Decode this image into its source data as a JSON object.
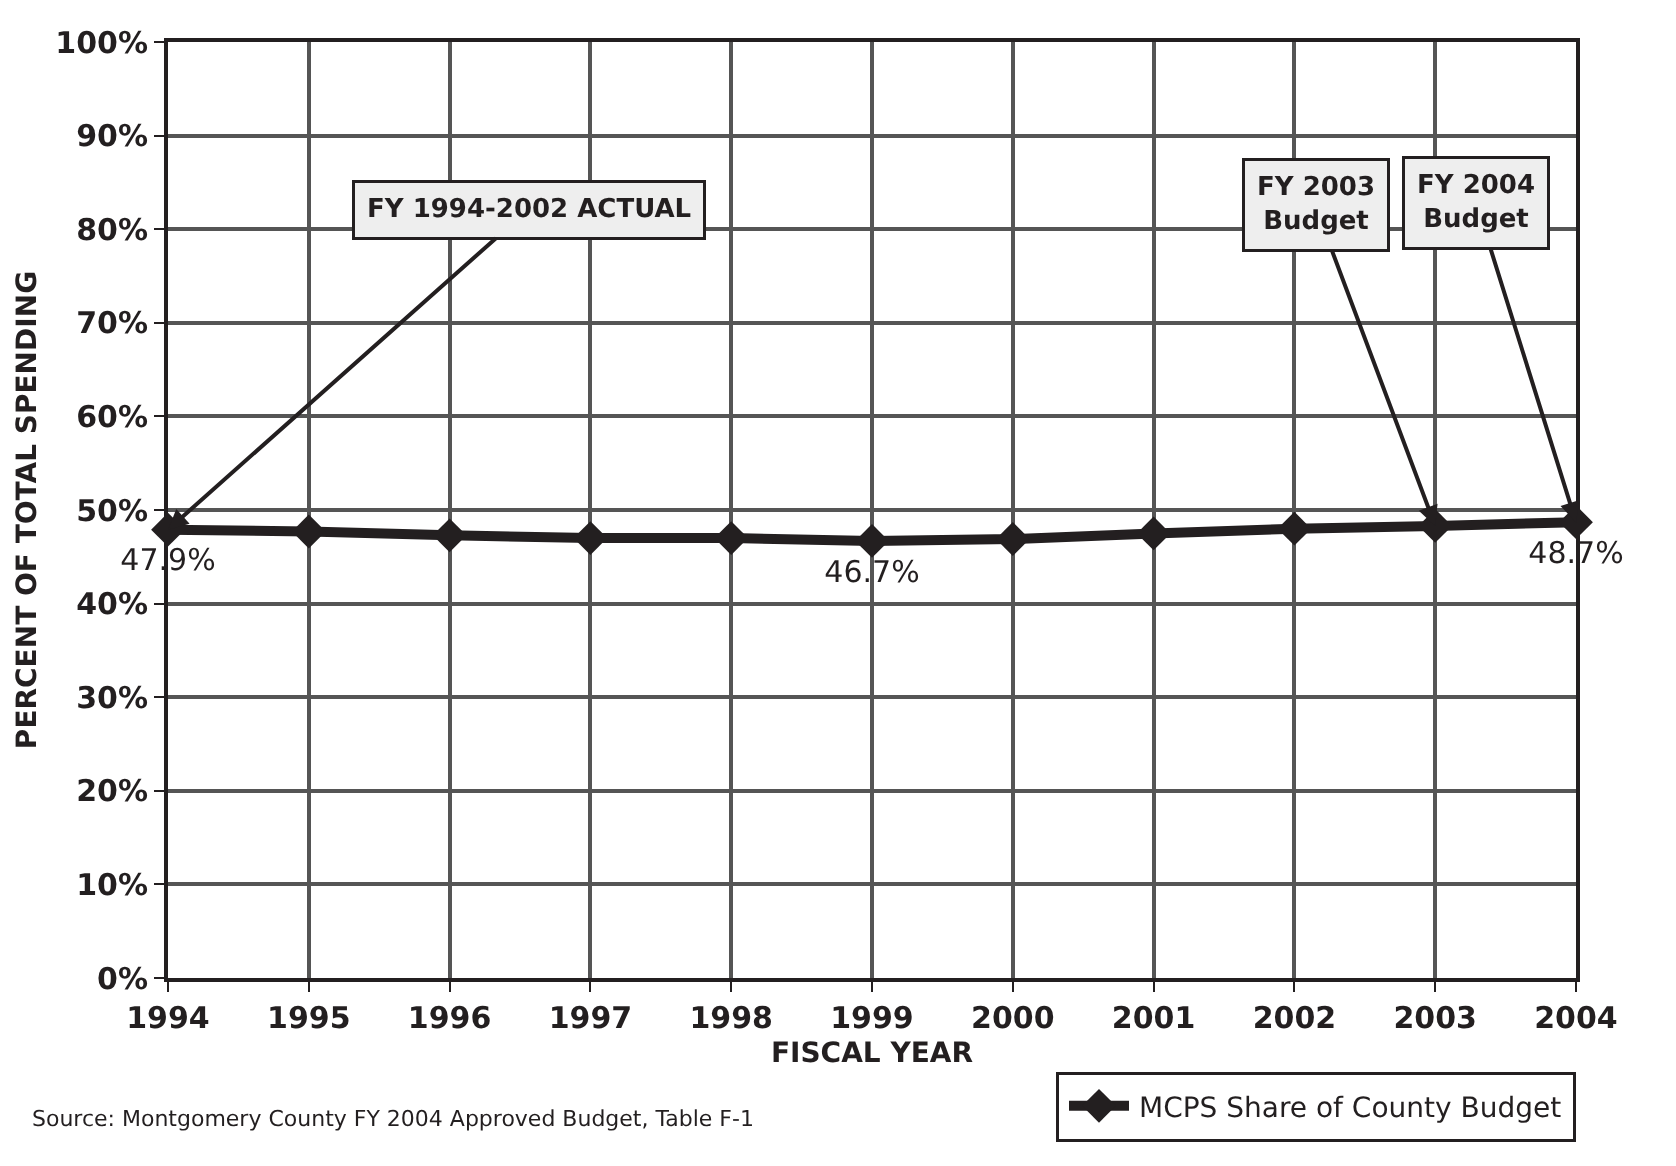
{
  "chart_data": {
    "type": "line",
    "xlabel": "FISCAL YEAR",
    "ylabel": "PERCENT OF TOTAL SPENDING",
    "x": [
      1994,
      1995,
      1996,
      1997,
      1998,
      1999,
      2000,
      2001,
      2002,
      2003,
      2004
    ],
    "series": [
      {
        "name": "MCPS Share of County Budget",
        "color": "#231f20",
        "values": [
          47.9,
          47.7,
          47.3,
          47.0,
          47.0,
          46.7,
          46.9,
          47.5,
          48.0,
          48.3,
          48.7
        ],
        "value_labels": [
          "47.9%",
          null,
          null,
          null,
          null,
          "46.7%",
          null,
          null,
          null,
          null,
          "48.7%"
        ]
      }
    ],
    "xlim": [
      1994,
      2004
    ],
    "xticks": [
      1994,
      1995,
      1996,
      1997,
      1998,
      1999,
      2000,
      2001,
      2002,
      2003,
      2004
    ],
    "ylim": [
      0,
      100
    ],
    "yticks": [
      {
        "value": 0,
        "label": "0%"
      },
      {
        "value": 10,
        "label": "10%"
      },
      {
        "value": 20,
        "label": "20%"
      },
      {
        "value": 30,
        "label": "30%"
      },
      {
        "value": 40,
        "label": "40%"
      },
      {
        "value": 50,
        "label": "50%"
      },
      {
        "value": 60,
        "label": "60%"
      },
      {
        "value": 70,
        "label": "70%"
      },
      {
        "value": 80,
        "label": "80%"
      },
      {
        "value": 90,
        "label": "90%"
      },
      {
        "value": 100,
        "label": "100%"
      }
    ],
    "grid": true,
    "legend": "bottom right",
    "marker": "diamond",
    "line_style": "solid",
    "annotations": [
      {
        "text": "FY 1994-2002 ACTUAL",
        "x": 1994,
        "y": 47.9
      },
      {
        "text": "FY 2003\nBudget",
        "x": 2003,
        "y": 48.3
      },
      {
        "text": "FY 2004\nBudget",
        "x": 2004,
        "y": 48.7
      },
      "Source: Montgomery County FY 2004 Approved Budget, Table F-1"
    ]
  }
}
